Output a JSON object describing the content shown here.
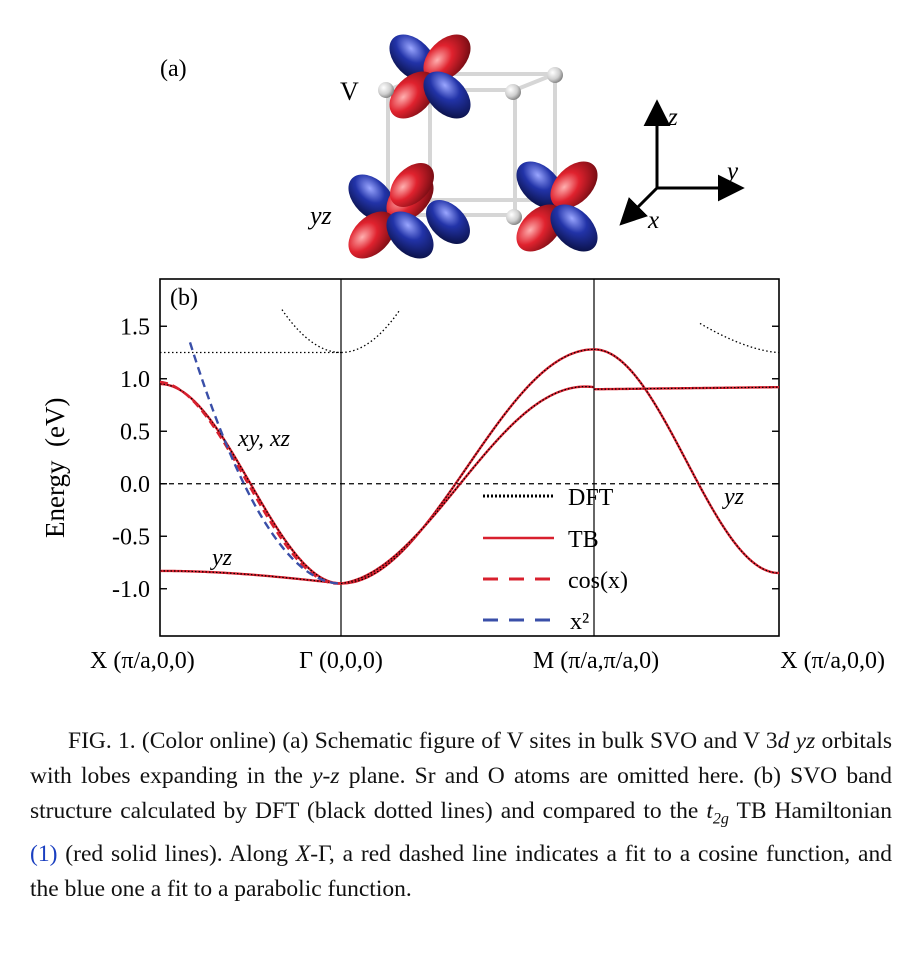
{
  "panel_a": {
    "label": "(a)",
    "site_label": "V",
    "orbital_label": "yz",
    "axes": {
      "z": "z",
      "y": "y",
      "x": "x"
    },
    "colors": {
      "lobe_positive": "#d8202e",
      "lobe_negative": "#1f2f9c",
      "bond": "#d9d9d9"
    }
  },
  "panel_b": {
    "label": "(b)",
    "chart_data": {
      "type": "line",
      "ylabel": "Energy  (eV)",
      "ylim": [
        -1.45,
        1.95
      ],
      "yticks": [
        "1.5",
        "1.0",
        "0.5",
        "0.0",
        "-0.5",
        "-1.0"
      ],
      "kpath_labels": [
        "X (π/a,0,0)",
        "Γ (0,0,0)",
        "M (π/a,π/a,0)",
        "X (π/a,0,0)"
      ],
      "fermi_level": 0.0,
      "annotations": [
        {
          "text": "xy, xz",
          "segment": "X-Γ"
        },
        {
          "text": "yz",
          "segment": "X-Γ"
        },
        {
          "text": "yz",
          "segment": "M-X"
        }
      ],
      "legend": [
        {
          "name": "DFT",
          "style": "dotted",
          "color": "#000000"
        },
        {
          "name": "TB",
          "style": "solid",
          "color": "#d8202e"
        },
        {
          "name": "cos(x)",
          "style": "dashed",
          "color": "#d8202e"
        },
        {
          "name": "x²",
          "style": "dashed",
          "color": "#3a4fa8"
        }
      ],
      "series": [
        {
          "name": "xy, xz (X-Γ)",
          "segment": "X-Γ",
          "t": [
            0,
            0.25,
            0.5,
            0.75,
            1
          ],
          "values": [
            0.95,
            0.58,
            -0.05,
            -0.67,
            -0.95
          ]
        },
        {
          "name": "yz (X-Γ)",
          "segment": "X-Γ",
          "t": [
            0,
            0.5,
            1
          ],
          "values": [
            -0.83,
            -0.88,
            -0.95
          ]
        },
        {
          "name": "upper (Γ-M)",
          "segment": "Γ-M",
          "t": [
            0,
            0.5,
            1
          ],
          "values": [
            -0.95,
            0.2,
            1.28
          ]
        },
        {
          "name": "lower (Γ-M)",
          "segment": "Γ-M",
          "t": [
            0,
            0.5,
            1
          ],
          "values": [
            -0.95,
            0.0,
            0.92
          ]
        },
        {
          "name": "flat (M-X)",
          "segment": "M-X",
          "t": [
            0,
            1
          ],
          "values": [
            0.92,
            0.92
          ]
        },
        {
          "name": "yz (M-X)",
          "segment": "M-X",
          "t": [
            0,
            0.5,
            1
          ],
          "values": [
            1.28,
            0.2,
            -0.83
          ]
        },
        {
          "name": "DFT upper bands",
          "segment": "X-Γ",
          "t": [
            0,
            1
          ],
          "values": [
            1.25,
            1.25
          ]
        }
      ]
    }
  },
  "caption": {
    "fig": "FIG. 1.",
    "t1": "(Color online) (a) Schematic figure of V sites in bulk SVO and V 3",
    "d": "d",
    "sp1": " ",
    "yz": "yz",
    "t2": " orbitals with lobes expanding in the ",
    "ypz": "y-z",
    "t3": " plane. Sr and O atoms are omitted here. (b) SVO band structure calculated by DFT (black dotted lines) and compared to the ",
    "t2g_t": "t",
    "t2g_sub": "2g",
    "t4": " TB Hamiltonian ",
    "ref": "(1)",
    "t5": " (red solid lines). Along ",
    "X": "X",
    "t6": "-Γ, a red dashed line indicates a fit to a cosine function, and the blue one a fit to a parabolic function."
  }
}
